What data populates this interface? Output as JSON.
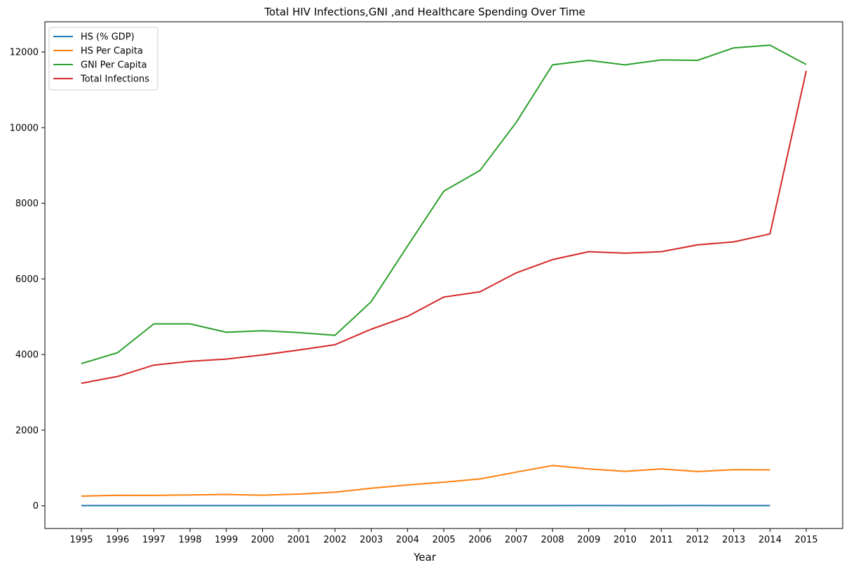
{
  "chart_data": {
    "type": "line",
    "title": "Total HIV Infections,GNI ,and Healthcare Spending Over Time",
    "xlabel": "Year",
    "ylabel": "",
    "categories": [
      "1995",
      "1996",
      "1997",
      "1998",
      "1999",
      "2000",
      "2001",
      "2002",
      "2003",
      "2004",
      "2005",
      "2006",
      "2007",
      "2008",
      "2009",
      "2010",
      "2011",
      "2012",
      "2013",
      "2014",
      "2015"
    ],
    "ylim": [
      -600,
      12800
    ],
    "yticks": [
      0,
      2000,
      4000,
      6000,
      8000,
      10000,
      12000
    ],
    "grid": false,
    "legend_position": "top-left",
    "series": [
      {
        "name": "HS (% GDP)",
        "color": "#1f77b4",
        "values": [
          4.5,
          4.6,
          4.6,
          4.6,
          4.7,
          4.6,
          4.7,
          4.8,
          5.2,
          5.3,
          5.3,
          5.3,
          5.2,
          5.4,
          6.1,
          5.8,
          5.9,
          6.1,
          5.9,
          5.6,
          null
        ]
      },
      {
        "name": "HS Per Capita",
        "color": "#ff7f0e",
        "values": [
          255,
          278,
          275,
          288,
          300,
          280,
          310,
          360,
          465,
          550,
          625,
          710,
          890,
          1065,
          975,
          910,
          975,
          905,
          955,
          950,
          null
        ]
      },
      {
        "name": "GNI Per Capita",
        "color": "#2ca02c",
        "values": [
          3760,
          4050,
          4810,
          4810,
          4590,
          4630,
          4580,
          4510,
          5400,
          6870,
          8320,
          8870,
          10140,
          11660,
          11780,
          11660,
          11790,
          11780,
          12110,
          12180,
          11670
        ]
      },
      {
        "name": "Total Infections",
        "color": "#d62728",
        "values": [
          3240,
          3420,
          3720,
          3820,
          3880,
          3990,
          4120,
          4260,
          4670,
          5010,
          5520,
          5660,
          6160,
          6510,
          6720,
          6680,
          6720,
          6900,
          6980,
          7190,
          11500
        ]
      }
    ]
  }
}
